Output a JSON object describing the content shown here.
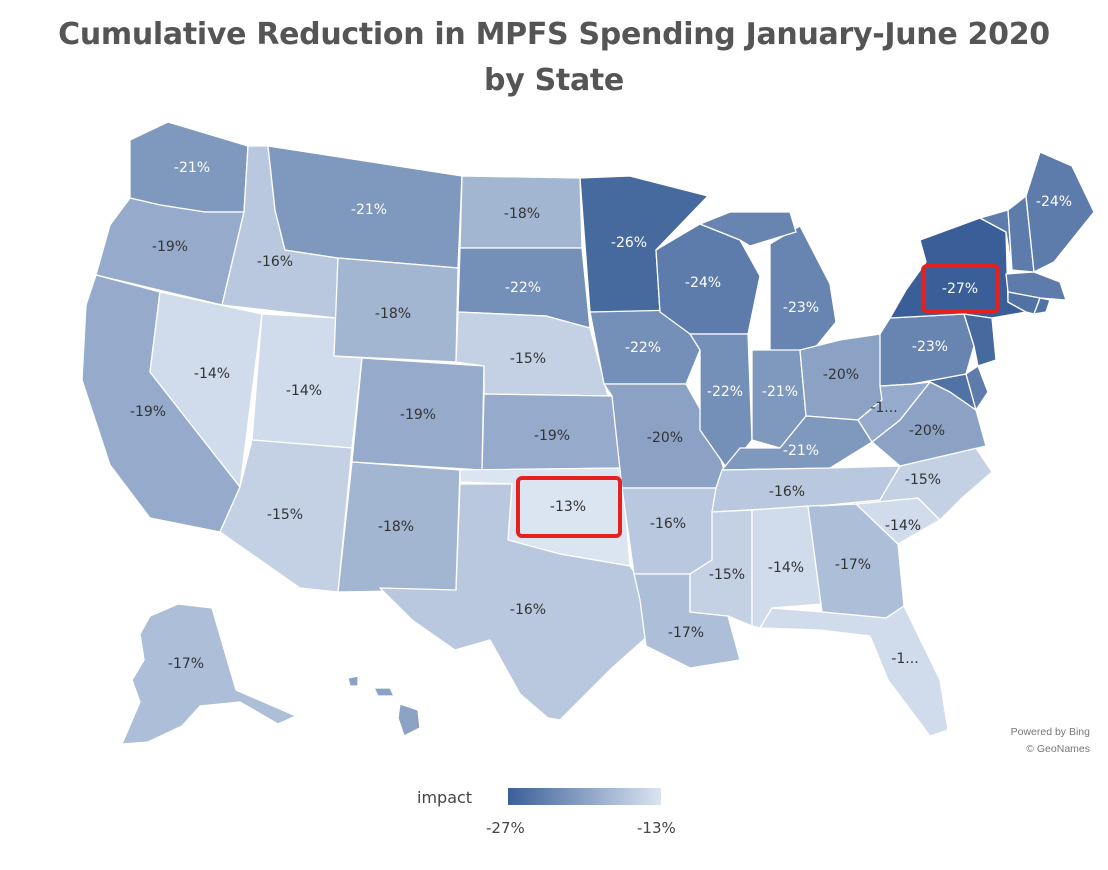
{
  "title": {
    "line1": "Cumulative Reduction in MPFS Spending January-June 2020",
    "line2": "by State"
  },
  "credit": {
    "line1": "Powered by Bing",
    "line2": "© GeoNames"
  },
  "legend": {
    "title": "impact",
    "min_label": "-27%",
    "max_label": "-13%",
    "dark_color": "#3a5f98",
    "light_color": "#dbe4f1"
  },
  "highlight_color": "#e5201e",
  "states": {
    "wa": {
      "name": "Washington",
      "label": "-21%",
      "value": -21
    },
    "or": {
      "name": "Oregon",
      "label": "-19%",
      "value": -19
    },
    "ca": {
      "name": "California",
      "label": "-19%",
      "value": -19
    },
    "id": {
      "name": "Idaho",
      "label": "-16%",
      "value": -16
    },
    "nv": {
      "name": "Nevada",
      "label": "-14%",
      "value": -14
    },
    "ut": {
      "name": "Utah",
      "label": "-14%",
      "value": -14
    },
    "az": {
      "name": "Arizona",
      "label": "-15%",
      "value": -15
    },
    "mt": {
      "name": "Montana",
      "label": "-21%",
      "value": -21
    },
    "wy": {
      "name": "Wyoming",
      "label": "-18%",
      "value": -18
    },
    "co": {
      "name": "Colorado",
      "label": "-19%",
      "value": -19
    },
    "nm": {
      "name": "New Mexico",
      "label": "-18%",
      "value": -18
    },
    "nd": {
      "name": "North Dakota",
      "label": "-18%",
      "value": -18
    },
    "sd": {
      "name": "South Dakota",
      "label": "-22%",
      "value": -22
    },
    "ne": {
      "name": "Nebraska",
      "label": "-15%",
      "value": -15
    },
    "ks": {
      "name": "Kansas",
      "label": "-19%",
      "value": -19
    },
    "ok": {
      "name": "Oklahoma",
      "label": "-13%",
      "value": -13
    },
    "tx": {
      "name": "Texas",
      "label": "-16%",
      "value": -16
    },
    "mn": {
      "name": "Minnesota",
      "label": "-26%",
      "value": -26
    },
    "ia": {
      "name": "Iowa",
      "label": "-22%",
      "value": -22
    },
    "mo": {
      "name": "Missouri",
      "label": "-20%",
      "value": -20
    },
    "ar": {
      "name": "Arkansas",
      "label": "-16%",
      "value": -16
    },
    "la": {
      "name": "Louisiana",
      "label": "-17%",
      "value": -17
    },
    "wi": {
      "name": "Wisconsin",
      "label": "-24%",
      "value": -24
    },
    "il": {
      "name": "Illinois",
      "label": "-22%",
      "value": -22
    },
    "mi": {
      "name": "Michigan",
      "label": "-23%",
      "value": -23
    },
    "in": {
      "name": "Indiana",
      "label": "-21%",
      "value": -21
    },
    "oh": {
      "name": "Ohio",
      "label": "-20%",
      "value": -20
    },
    "ky": {
      "name": "Kentucky",
      "label": "-21%",
      "value": -21
    },
    "tn": {
      "name": "Tennessee",
      "label": "-16%",
      "value": -16
    },
    "ms": {
      "name": "Mississippi",
      "label": "-15%",
      "value": -15
    },
    "al": {
      "name": "Alabama",
      "label": "-14%",
      "value": -14
    },
    "ga": {
      "name": "Georgia",
      "label": "-17%",
      "value": -17
    },
    "fl": {
      "name": "Florida",
      "label": "-1...",
      "value": -14
    },
    "sc": {
      "name": "South Carolina",
      "label": "-14%",
      "value": -14
    },
    "nc": {
      "name": "North Carolina",
      "label": "-15%",
      "value": -15
    },
    "va": {
      "name": "Virginia",
      "label": "-20%",
      "value": -20
    },
    "wv": {
      "name": "West Virginia",
      "label": "-1...",
      "value": -19
    },
    "pa": {
      "name": "Pennsylvania",
      "label": "-23%",
      "value": -23
    },
    "ny": {
      "name": "New York",
      "label": "-27%",
      "value": -27
    },
    "me": {
      "name": "Maine",
      "label": "-24%",
      "value": -24
    },
    "nh": {
      "name": "New Hampshire",
      "label": "",
      "value": -24
    },
    "vt": {
      "name": "Vermont",
      "label": "",
      "value": -24
    },
    "ma": {
      "name": "Massachusetts",
      "label": "",
      "value": -24
    },
    "ct": {
      "name": "Connecticut",
      "label": "",
      "value": -25
    },
    "ri": {
      "name": "Rhode Island",
      "label": "",
      "value": -25
    },
    "nj": {
      "name": "New Jersey",
      "label": "",
      "value": -26
    },
    "de": {
      "name": "Delaware",
      "label": "",
      "value": -24
    },
    "md": {
      "name": "Maryland",
      "label": "",
      "value": -25
    },
    "ak": {
      "name": "Alaska",
      "label": "-17%",
      "value": -17
    },
    "hi": {
      "name": "Hawaii",
      "label": "",
      "value": -20
    }
  }
}
